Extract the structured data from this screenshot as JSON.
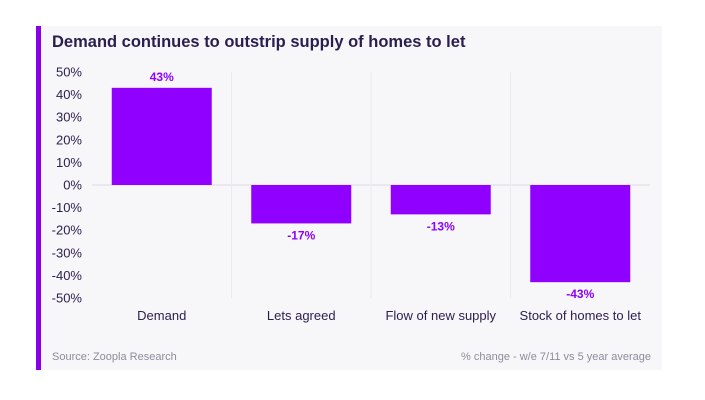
{
  "colors": {
    "accent": "#8a00e6",
    "bar": "#8f00ff",
    "title": "#2a1e4e",
    "label": "#8f00ff"
  },
  "title": "Demand continues to outstrip supply of homes to let",
  "footer": {
    "source": "Source: Zoopla Research",
    "note": "% change - w/e 7/11 vs 5 year average"
  },
  "chart_data": {
    "type": "bar",
    "title": "Demand continues to outstrip supply of homes to let",
    "categories": [
      "Demand",
      "Lets agreed",
      "Flow of new supply",
      "Stock of homes to let"
    ],
    "values": [
      43,
      -17,
      -13,
      -43
    ],
    "value_labels": [
      "43%",
      "-17%",
      "-13%",
      "-43%"
    ],
    "ylim": [
      -50,
      50
    ],
    "yticks": [
      50,
      40,
      30,
      20,
      10,
      0,
      -10,
      -20,
      -30,
      -40,
      -50
    ],
    "ytick_labels": [
      "50%",
      "40%",
      "30%",
      "20%",
      "10%",
      "0%",
      "-10%",
      "-20%",
      "-30%",
      "-40%",
      "-50%"
    ],
    "grid": false,
    "legend": "none"
  }
}
